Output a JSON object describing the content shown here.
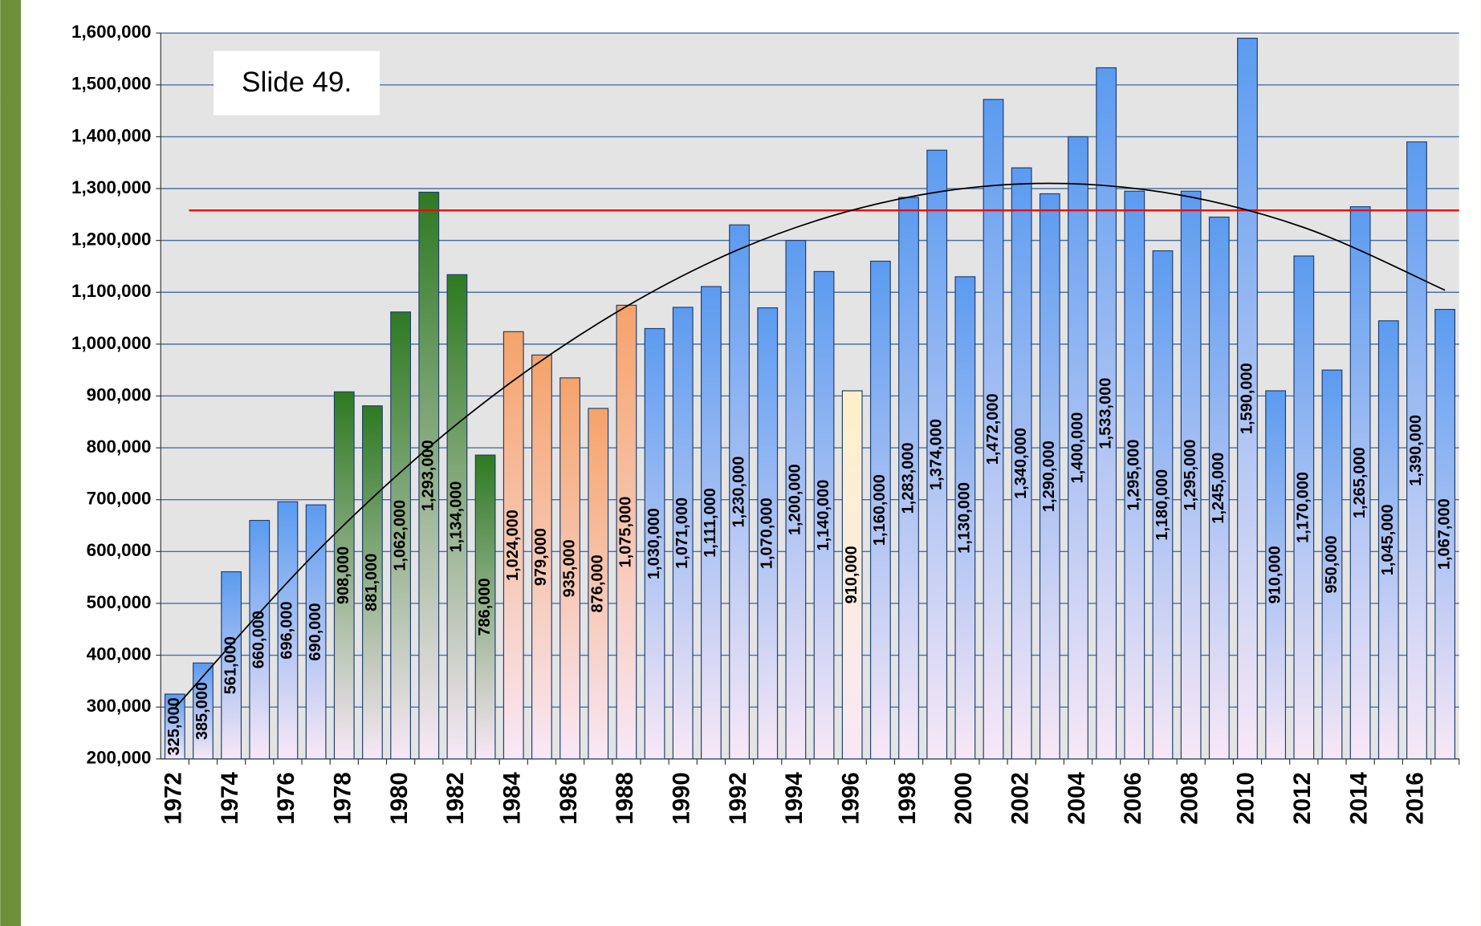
{
  "chart_data": {
    "type": "bar",
    "annotation": "Slide 49.",
    "categories": [
      "1972",
      null,
      "1974",
      null,
      "1976",
      null,
      "1978",
      null,
      "1980",
      null,
      "1982",
      null,
      "1984",
      null,
      "1986",
      null,
      "1988",
      null,
      "1990",
      null,
      "1992",
      null,
      "1994",
      null,
      "1996",
      null,
      "1998",
      null,
      "2000",
      null,
      "2002",
      null,
      "2004",
      null,
      "2006",
      null,
      "2008",
      null,
      "2010",
      null,
      "2012",
      null,
      "2014",
      null,
      "2016",
      null
    ],
    "values": [
      325000,
      385000,
      561000,
      660000,
      696000,
      690000,
      908000,
      881000,
      1062000,
      1293000,
      1134000,
      786000,
      1024000,
      979000,
      935000,
      876000,
      1075000,
      1030000,
      1071000,
      1111000,
      1230000,
      1070000,
      1200000,
      1140000,
      910000,
      1160000,
      1283000,
      1374000,
      1130000,
      1472000,
      1340000,
      1290000,
      1400000,
      1533000,
      1295000,
      1180000,
      1295000,
      1245000,
      1590000,
      910000,
      1170000,
      950000,
      1265000,
      1045000,
      1390000,
      1067000
    ],
    "value_labels": [
      "325,000",
      "385,000",
      "561,000",
      "660,000",
      "696,000",
      "690,000",
      "908,000",
      "881,000",
      "1,062,000",
      "1,293,000",
      "1,134,000",
      "786,000",
      "1,024,000",
      "979,000",
      "935,000",
      "876,000",
      "1,075,000",
      "1,030,000",
      "1,071,000",
      "1,111,000",
      "1,230,000",
      "1,070,000",
      "1,200,000",
      "1,140,000",
      "910,000",
      "1,160,000",
      "1,283,000",
      "1,374,000",
      "1,130,000",
      "1,472,000",
      "1,340,000",
      "1,290,000",
      "1,400,000",
      "1,533,000",
      "1,295,000",
      "1,180,000",
      "1,295,000",
      "1,245,000",
      "1,590,000",
      "910,000",
      "1,170,000",
      "950,000",
      "1,265,000",
      "1,045,000",
      "1,390,000",
      "1,067,000"
    ],
    "colors": [
      "#5b9bf0",
      "#5b9bf0",
      "#5b9bf0",
      "#5b9bf0",
      "#5b9bf0",
      "#5b9bf0",
      "#2e7a22",
      "#2e7a22",
      "#2e7a22",
      "#2e7a22",
      "#2e7a22",
      "#2e7a22",
      "#f5a36a",
      "#f5a36a",
      "#f5a36a",
      "#f5a36a",
      "#f5a36a",
      "#5b9bf0",
      "#5b9bf0",
      "#5b9bf0",
      "#5b9bf0",
      "#5b9bf0",
      "#5b9bf0",
      "#5b9bf0",
      "#fff0c8",
      "#5b9bf0",
      "#5b9bf0",
      "#5b9bf0",
      "#5b9bf0",
      "#5b9bf0",
      "#5b9bf0",
      "#5b9bf0",
      "#5b9bf0",
      "#5b9bf0",
      "#5b9bf0",
      "#5b9bf0",
      "#5b9bf0",
      "#5b9bf0",
      "#5b9bf0",
      "#5b9bf0",
      "#5b9bf0",
      "#5b9bf0",
      "#5b9bf0",
      "#5b9bf0",
      "#5b9bf0",
      "#5b9bf0"
    ],
    "ylim": [
      200000,
      1600000
    ],
    "yticks": [
      {
        "value": 200000,
        "label": "200,000"
      },
      {
        "value": 300000,
        "label": "300,000"
      },
      {
        "value": 400000,
        "label": "400,000"
      },
      {
        "value": 500000,
        "label": "500,000"
      },
      {
        "value": 600000,
        "label": "600,000"
      },
      {
        "value": 700000,
        "label": "700,000"
      },
      {
        "value": 800000,
        "label": "800,000"
      },
      {
        "value": 900000,
        "label": "900,000"
      },
      {
        "value": 1000000,
        "label": "1,000,000"
      },
      {
        "value": 1100000,
        "label": "1,100,000"
      },
      {
        "value": 1200000,
        "label": "1,200,000"
      },
      {
        "value": 1300000,
        "label": "1,300,000"
      },
      {
        "value": 1400000,
        "label": "1,400,000"
      },
      {
        "value": 1500000,
        "label": "1,500,000"
      },
      {
        "value": 1600000,
        "label": "1,600,000"
      }
    ],
    "grid": true,
    "reference_line": {
      "value": 1258000,
      "color": "#ff0000"
    },
    "trendline": {
      "x": [
        1972,
        1977,
        1982,
        1987,
        1992,
        1997,
        2002,
        2007,
        2012,
        2017
      ],
      "values": [
        298000,
        598000,
        846000,
        1040000,
        1183000,
        1272000,
        1309000,
        1293000,
        1225000,
        1104000
      ],
      "color": "#000000"
    }
  }
}
